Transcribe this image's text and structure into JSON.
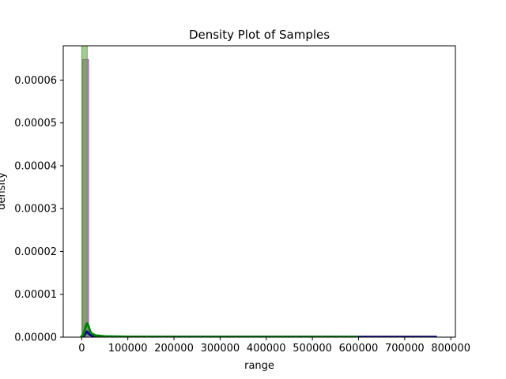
{
  "chart_data": {
    "type": "histogram",
    "title": "Density Plot of Samples",
    "xlabel": "range",
    "ylabel": "density",
    "xlim": [
      -40000,
      810000
    ],
    "ylim": [
      0,
      6.8e-05
    ],
    "xticks": [
      0,
      100000,
      200000,
      300000,
      400000,
      500000,
      600000,
      700000,
      800000
    ],
    "yticks": [
      0,
      1e-05,
      2e-05,
      3e-05,
      4e-05,
      5e-05,
      6e-05
    ],
    "xtick_labels": [
      "0",
      "100000",
      "200000",
      "300000",
      "400000",
      "500000",
      "600000",
      "700000",
      "800000"
    ],
    "ytick_labels": [
      "0.00000",
      "0.00001",
      "0.00002",
      "0.00003",
      "0.00004",
      "0.00005",
      "0.00006"
    ],
    "grid": false,
    "series": [
      {
        "kind": "bars",
        "color": "#8c3f8c",
        "opacity": 0.55,
        "bars": [
          {
            "x0": 2000,
            "x1": 15000,
            "y": 6.48e-05
          }
        ]
      },
      {
        "kind": "bars",
        "color": "#5a9e3c",
        "opacity": 0.55,
        "bars": [
          {
            "x0": 0,
            "x1": 12000,
            "y": 6.8e-05
          }
        ]
      },
      {
        "kind": "line",
        "color": "#00008b",
        "points": [
          [
            0,
            0
          ],
          [
            4000,
            2e-07
          ],
          [
            8000,
            8e-07
          ],
          [
            11000,
            1.3e-06
          ],
          [
            14000,
            1e-06
          ],
          [
            18000,
            5e-07
          ],
          [
            25000,
            2e-07
          ],
          [
            50000,
            8e-08
          ],
          [
            150000,
            5e-08
          ],
          [
            300000,
            4e-08
          ],
          [
            450000,
            4e-08
          ],
          [
            600000,
            4e-08
          ],
          [
            700000,
            4e-08
          ],
          [
            770000,
            4e-08
          ]
        ]
      },
      {
        "kind": "line",
        "color": "#008000",
        "points": [
          [
            -2000,
            0
          ],
          [
            3000,
            5e-07
          ],
          [
            7000,
            1.8e-06
          ],
          [
            10000,
            3e-06
          ],
          [
            12000,
            3.2e-06
          ],
          [
            15000,
            2.5e-06
          ],
          [
            18000,
            1.4e-06
          ],
          [
            22000,
            8e-07
          ],
          [
            30000,
            4e-07
          ],
          [
            50000,
            1.8e-07
          ],
          [
            100000,
            1e-07
          ],
          [
            200000,
            7e-08
          ],
          [
            300000,
            6e-08
          ],
          [
            400000,
            6e-08
          ],
          [
            500000,
            6e-08
          ],
          [
            600000,
            5e-08
          ]
        ]
      }
    ]
  }
}
